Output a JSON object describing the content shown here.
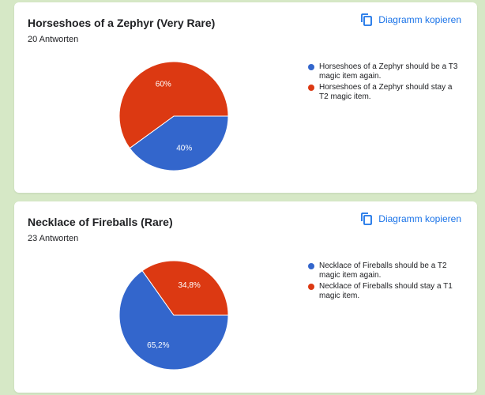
{
  "colors": {
    "blue": "#3366cc",
    "red": "#dc3912",
    "link": "#1a73e8"
  },
  "copy_icon": "copy-icon",
  "cards": [
    {
      "title": "Horseshoes of a Zephyr (Very Rare)",
      "responses": "20 Antworten",
      "copy_label": "Diagramm kopieren",
      "chart_data": {
        "type": "pie",
        "slices": [
          {
            "label": "Horseshoes of a Zephyr should be a T3 magic item again.",
            "value": 40,
            "display": "40%",
            "color": "#3366cc"
          },
          {
            "label": "Horseshoes of a Zephyr should stay a T2 magic item.",
            "value": 60,
            "display": "60%",
            "color": "#dc3912"
          }
        ]
      }
    },
    {
      "title": "Necklace of Fireballs (Rare)",
      "responses": "23 Antworten",
      "copy_label": "Diagramm kopieren",
      "chart_data": {
        "type": "pie",
        "slices": [
          {
            "label": "Necklace of Fireballs should be a T2 magic item again.",
            "value": 65.2,
            "display": "65,2%",
            "color": "#3366cc"
          },
          {
            "label": "Necklace of Fireballs should stay a T1 magic item.",
            "value": 34.8,
            "display": "34,8%",
            "color": "#dc3912"
          }
        ]
      }
    }
  ]
}
